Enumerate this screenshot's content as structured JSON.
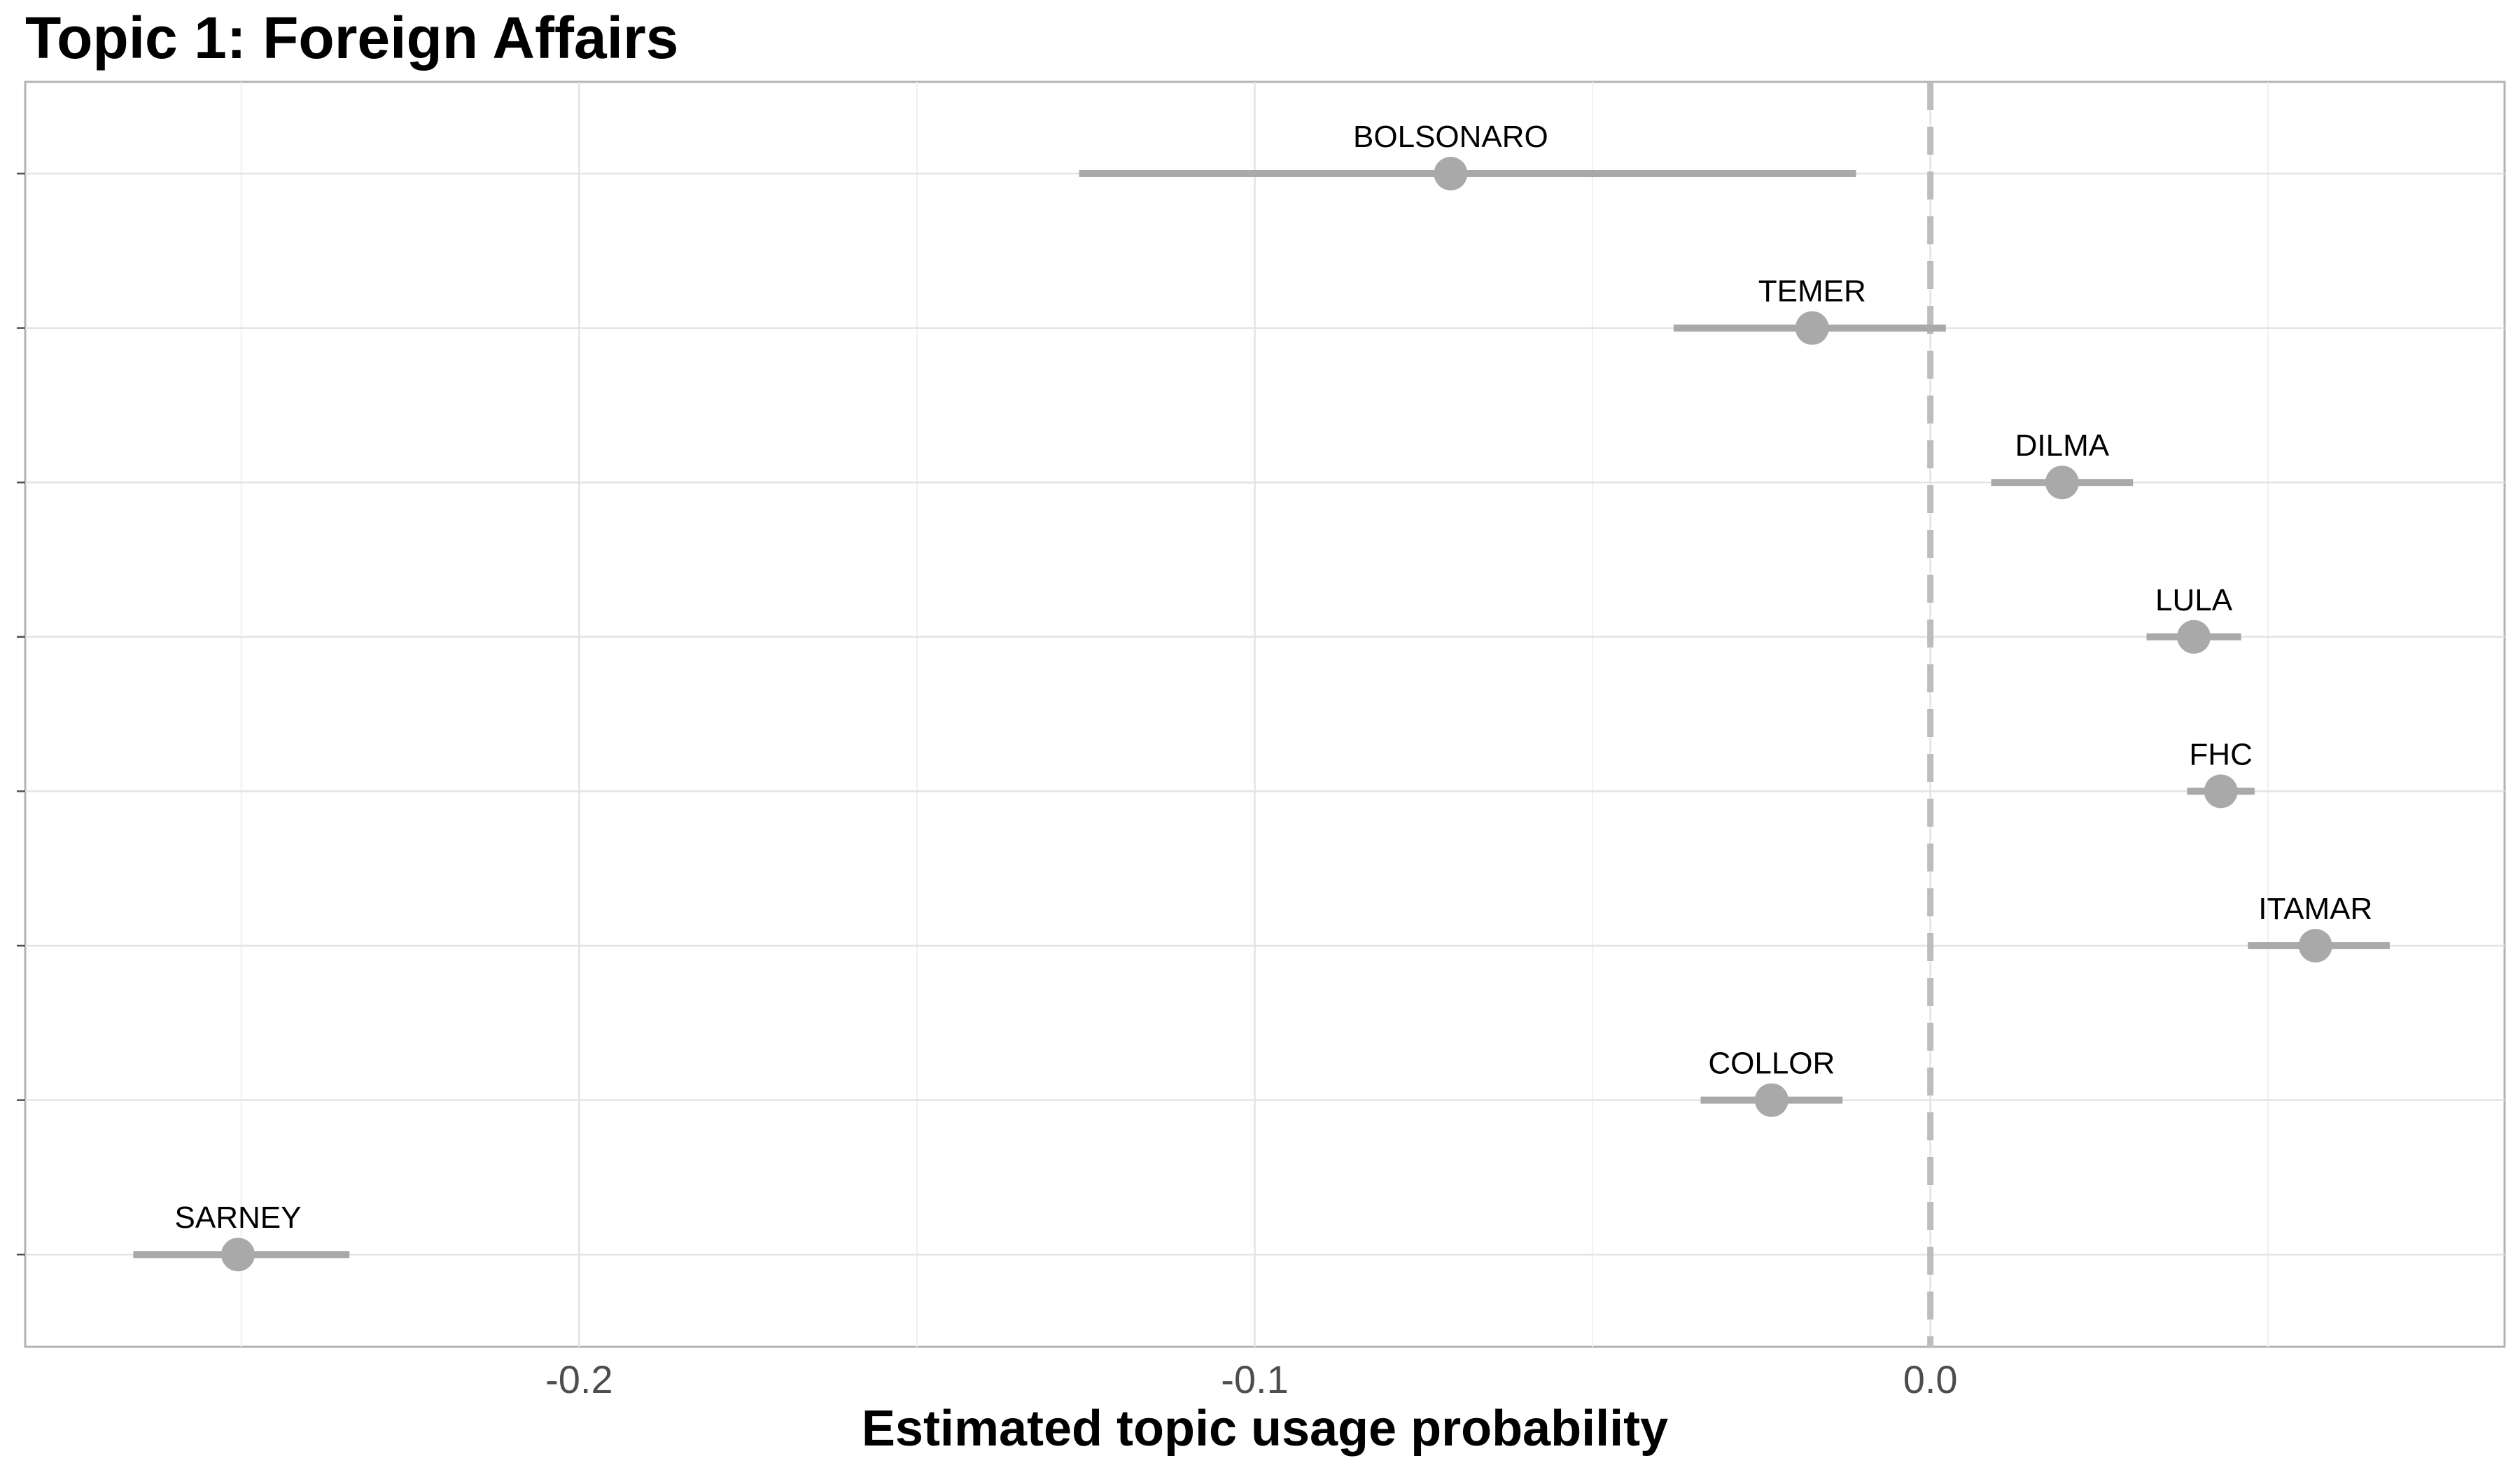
{
  "chart_data": {
    "type": "scatter",
    "title": "Topic 1: Foreign Affairs",
    "xlabel": "Estimated topic usage probability",
    "ylabel": "",
    "xlim": [
      -0.282,
      0.085
    ],
    "x_ticks": [
      -0.2,
      -0.1,
      0.0
    ],
    "x_tick_labels": [
      "-0.2",
      "-0.1",
      "0.0"
    ],
    "x_minor_ticks": [
      -0.25,
      -0.15,
      -0.05,
      0.05
    ],
    "reference_line": {
      "x": 0.0,
      "style": "dashed"
    },
    "grid": true,
    "legend": "none",
    "point_color": "#a9a9a9",
    "series": [
      {
        "points": [
          {
            "label": "BOLSONARO",
            "estimate": -0.071,
            "ci": [
              -0.126,
              -0.011
            ]
          },
          {
            "label": "TEMER",
            "estimate": -0.0175,
            "ci": [
              -0.038,
              0.0023
            ]
          },
          {
            "label": "DILMA",
            "estimate": 0.0195,
            "ci": [
              0.009,
              0.03
            ]
          },
          {
            "label": "LULA",
            "estimate": 0.039,
            "ci": [
              0.032,
              0.046
            ]
          },
          {
            "label": "FHC",
            "estimate": 0.043,
            "ci": [
              0.038,
              0.048
            ]
          },
          {
            "label": "ITAMAR",
            "estimate": 0.057,
            "ci": [
              0.047,
              0.068
            ]
          },
          {
            "label": "COLLOR",
            "estimate": -0.0235,
            "ci": [
              -0.034,
              -0.013
            ]
          },
          {
            "label": "SARNEY",
            "estimate": -0.2505,
            "ci": [
              -0.266,
              -0.234
            ]
          }
        ]
      }
    ]
  }
}
